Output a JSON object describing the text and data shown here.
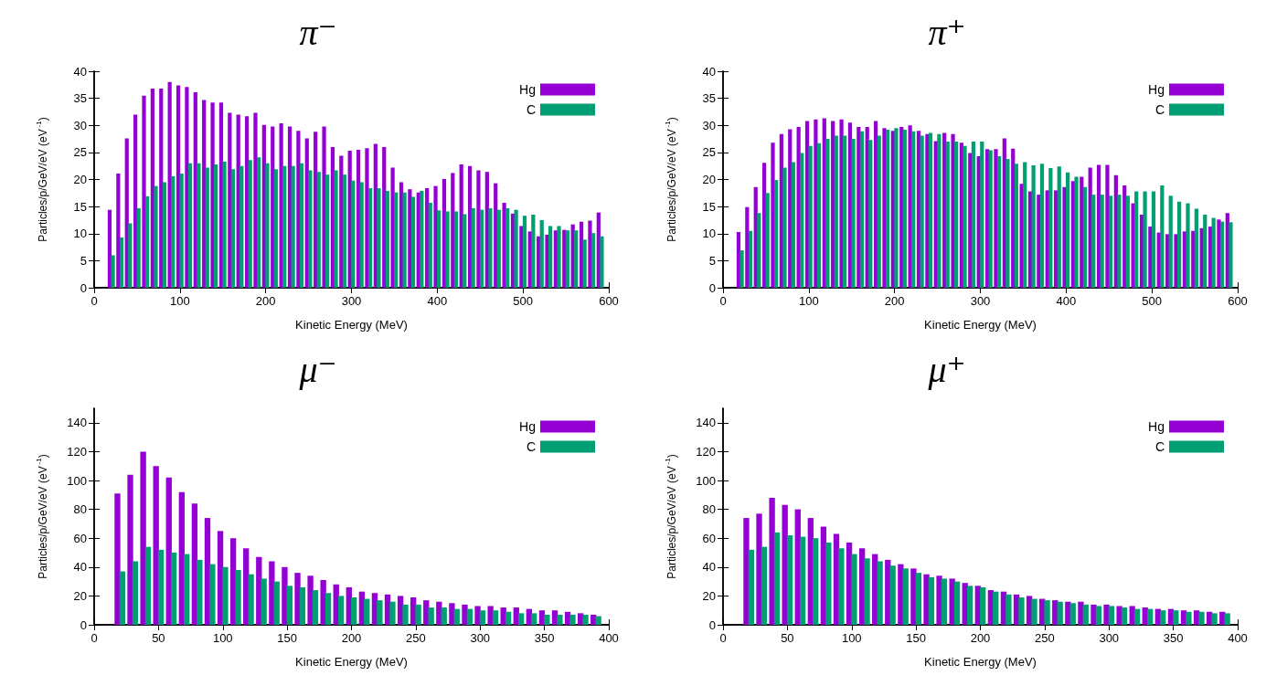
{
  "chart_data": [
    {
      "type": "bar",
      "title": "π⁻",
      "xlabel": "Kinetic Energy (MeV)",
      "ylabel": "Particles/p/GeV/eV (eV$^{-1}$)",
      "x": [
        20,
        30,
        40,
        50,
        60,
        70,
        80,
        90,
        100,
        110,
        120,
        130,
        140,
        150,
        160,
        170,
        180,
        190,
        200,
        210,
        220,
        230,
        240,
        250,
        260,
        270,
        280,
        290,
        300,
        310,
        320,
        330,
        340,
        350,
        360,
        370,
        380,
        390,
        400,
        410,
        420,
        430,
        440,
        450,
        460,
        470,
        480,
        490,
        500,
        510,
        520,
        530,
        540,
        550,
        560,
        570,
        580,
        590
      ],
      "series": [
        {
          "name": "Hg",
          "color": "#9400d3",
          "values": [
            14.4,
            21.1,
            27.6,
            32,
            35.5,
            36.8,
            36.8,
            38,
            37.4,
            37.1,
            36.1,
            34.7,
            34.2,
            34.2,
            32.3,
            32,
            31.7,
            32.3,
            30.1,
            29.8,
            30.4,
            29.8,
            29,
            27.6,
            28.8,
            29.8,
            26,
            24.4,
            25.3,
            25.5,
            25.8,
            26.6,
            26,
            22.2,
            19.5,
            18.2,
            17.6,
            18.4,
            18.8,
            20.1,
            21.2,
            22.8,
            22.5,
            21.7,
            21.4,
            19.3,
            15.7,
            13.7,
            11.4,
            10.4,
            9.5,
            9.8,
            10.6,
            10.7,
            11.7,
            12.2,
            12.4,
            13.9
          ]
        },
        {
          "name": "C",
          "color": "#009e73",
          "values": [
            6,
            9.3,
            11.9,
            14.7,
            16.9,
            18.8,
            19.5,
            20.6,
            21.1,
            23,
            23,
            22.2,
            22.8,
            23.3,
            21.9,
            22.5,
            23.6,
            24.1,
            23,
            21.9,
            22.5,
            22.5,
            23,
            21.7,
            21.4,
            20.9,
            21.7,
            20.9,
            19.8,
            19.5,
            18.4,
            18.4,
            17.9,
            17.6,
            17.6,
            16.8,
            17.9,
            15.7,
            14.3,
            14.1,
            14.1,
            13.6,
            14.7,
            14.4,
            14.7,
            14.4,
            14.7,
            14.4,
            13.3,
            13.5,
            12.5,
            11.4,
            11.4,
            10.6,
            10.6,
            8.9,
            10.1,
            9.5
          ]
        }
      ],
      "xlim": [
        0,
        600
      ],
      "xticks": [
        0,
        100,
        200,
        300,
        400,
        500,
        600
      ],
      "ylim": [
        0,
        40
      ],
      "yticks": [
        0,
        5,
        10,
        15,
        20,
        25,
        30,
        35,
        40
      ],
      "legend": "top right",
      "grid": false
    },
    {
      "type": "bar",
      "title": "π⁺",
      "xlabel": "Kinetic Energy (MeV)",
      "ylabel": "Particles/p/GeV/eV (eV$^{-1}$)",
      "x": [
        20,
        30,
        40,
        50,
        60,
        70,
        80,
        90,
        100,
        110,
        120,
        130,
        140,
        150,
        160,
        170,
        180,
        190,
        200,
        210,
        220,
        230,
        240,
        250,
        260,
        270,
        280,
        290,
        300,
        310,
        320,
        330,
        340,
        350,
        360,
        370,
        380,
        390,
        400,
        410,
        420,
        430,
        440,
        450,
        460,
        470,
        480,
        490,
        500,
        510,
        520,
        530,
        540,
        550,
        560,
        570,
        580,
        590
      ],
      "series": [
        {
          "name": "Hg",
          "color": "#9400d3",
          "values": [
            10.3,
            14.9,
            18.6,
            23.1,
            26.8,
            28.4,
            29.3,
            29.7,
            30.8,
            31.1,
            31.3,
            30.8,
            31.1,
            30.5,
            29.7,
            29.7,
            30.8,
            29.5,
            29,
            29.7,
            30,
            29,
            28.4,
            27.1,
            28.6,
            28.4,
            26.8,
            24.9,
            24.3,
            25.6,
            25.6,
            27.6,
            25.7,
            19.2,
            17.8,
            17.2,
            18,
            18,
            18.6,
            19.7,
            20.5,
            22.2,
            22.7,
            22.7,
            20.8,
            18.9,
            15.6,
            13.5,
            11.3,
            10.2,
            9.9,
            9.9,
            10.4,
            10.5,
            11,
            11.3,
            12.6,
            13.8
          ]
        },
        {
          "name": "C",
          "color": "#009e73",
          "values": [
            6.9,
            10.5,
            13.8,
            17.5,
            19.9,
            22.2,
            23.2,
            24.9,
            26.2,
            26.7,
            27.5,
            28.1,
            28.1,
            27.5,
            28.9,
            27.3,
            28.1,
            29.2,
            29.5,
            29.2,
            28.9,
            28.1,
            28.6,
            28.4,
            27,
            27,
            26.2,
            27,
            27,
            25.4,
            24.3,
            23.8,
            22.9,
            23.2,
            22.6,
            22.9,
            22.1,
            22.4,
            21.3,
            20.5,
            18.6,
            17.2,
            17.2,
            17,
            17.2,
            17,
            17.8,
            17.8,
            17.8,
            18.9,
            17,
            15.9,
            15.6,
            14.6,
            13.5,
            12.9,
            12.2,
            12.1
          ]
        }
      ],
      "xlim": [
        0,
        600
      ],
      "xticks": [
        0,
        100,
        200,
        300,
        400,
        500,
        600
      ],
      "ylim": [
        0,
        40
      ],
      "yticks": [
        0,
        5,
        10,
        15,
        20,
        25,
        30,
        35,
        40
      ],
      "legend": "top right",
      "grid": false
    },
    {
      "type": "bar",
      "title": "μ⁻",
      "xlabel": "Kinetic Energy (MeV)",
      "ylabel": "Particles/p/GeV/eV (eV$^{-1}$)",
      "x": [
        20,
        30,
        40,
        50,
        60,
        70,
        80,
        90,
        100,
        110,
        120,
        130,
        140,
        150,
        160,
        170,
        180,
        190,
        200,
        210,
        220,
        230,
        240,
        250,
        260,
        270,
        280,
        290,
        300,
        310,
        320,
        330,
        340,
        350,
        360,
        370,
        380,
        390
      ],
      "series": [
        {
          "name": "Hg",
          "color": "#9400d3",
          "values": [
            91,
            104,
            120,
            110,
            102,
            92,
            84,
            74,
            65,
            60,
            53,
            47,
            44,
            40,
            36,
            34,
            31,
            28,
            26,
            23,
            22,
            21,
            20,
            19,
            17,
            16,
            15,
            14,
            13,
            13,
            12,
            12,
            11,
            10,
            10,
            9,
            8,
            7
          ]
        },
        {
          "name": "C",
          "color": "#009e73",
          "values": [
            37,
            44,
            54,
            52,
            50,
            49,
            45,
            42,
            40,
            38,
            35,
            32,
            30,
            27,
            26,
            24,
            22,
            20,
            19,
            18,
            17,
            16,
            14,
            14,
            12,
            12,
            11,
            11,
            10,
            10,
            9,
            8,
            8,
            7,
            7,
            7,
            7,
            6
          ]
        }
      ],
      "xlim": [
        0,
        400
      ],
      "xticks": [
        0,
        50,
        100,
        150,
        200,
        250,
        300,
        350,
        400
      ],
      "ylim": [
        0,
        150
      ],
      "yticks": [
        0,
        20,
        40,
        60,
        80,
        100,
        120,
        140
      ],
      "legend": "top right",
      "grid": false
    },
    {
      "type": "bar",
      "title": "μ⁺",
      "xlabel": "Kinetic Energy (MeV)",
      "ylabel": "Particles/p/GeV/eV (eV$^{-1}$)",
      "x": [
        20,
        30,
        40,
        50,
        60,
        70,
        80,
        90,
        100,
        110,
        120,
        130,
        140,
        150,
        160,
        170,
        180,
        190,
        200,
        210,
        220,
        230,
        240,
        250,
        260,
        270,
        280,
        290,
        300,
        310,
        320,
        330,
        340,
        350,
        360,
        370,
        380,
        390
      ],
      "series": [
        {
          "name": "Hg",
          "color": "#9400d3",
          "values": [
            74,
            77,
            88,
            83,
            80,
            74,
            68,
            63,
            57,
            53,
            49,
            45,
            42,
            39,
            35,
            34,
            32,
            29,
            27,
            24,
            23,
            21,
            20,
            18,
            17,
            16,
            16,
            14,
            14,
            13,
            13,
            12,
            11,
            11,
            10,
            10,
            9,
            9
          ]
        },
        {
          "name": "C",
          "color": "#009e73",
          "values": [
            52,
            54,
            64,
            62,
            61,
            60,
            57,
            53,
            49,
            46,
            44,
            41,
            39,
            36,
            33,
            32,
            30,
            27,
            26,
            23,
            21,
            19,
            18,
            17,
            16,
            15,
            14,
            13,
            13,
            12,
            11,
            11,
            10,
            10,
            9,
            9,
            8,
            8
          ]
        }
      ],
      "xlim": [
        0,
        400
      ],
      "xticks": [
        0,
        50,
        100,
        150,
        200,
        250,
        300,
        350,
        400
      ],
      "ylim": [
        0,
        150
      ],
      "yticks": [
        0,
        20,
        40,
        60,
        80,
        100,
        120,
        140
      ],
      "legend": "top right",
      "grid": false
    }
  ]
}
